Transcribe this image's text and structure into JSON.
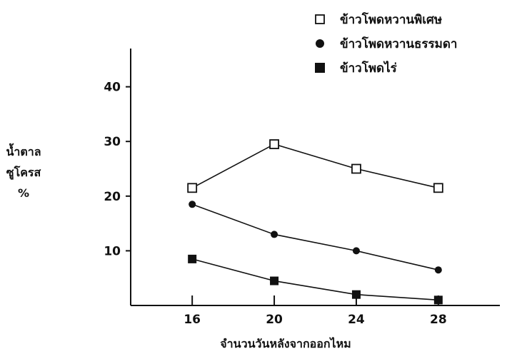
{
  "chart_data": {
    "type": "line",
    "x": [
      16,
      20,
      24,
      28
    ],
    "xticks": [
      "16",
      "20",
      "24",
      "28"
    ],
    "yticks": [
      "10",
      "20",
      "30",
      "40"
    ],
    "ylim": [
      0,
      50
    ],
    "xlim": [
      13,
      31
    ],
    "ylabel_lines": [
      "น้ำตาล",
      "ซูโครส",
      "%"
    ],
    "xlabel": "จำนวนวันหลังจากออกไหม",
    "legend_position": "top-right",
    "series": [
      {
        "name": "ข้าวโพดหวานพิเศษ",
        "marker": "open-square",
        "color": "#111111",
        "values": [
          21.5,
          29.5,
          25,
          21.5
        ]
      },
      {
        "name": "ข้าวโพดหวานธรรมดา",
        "marker": "filled-circle",
        "color": "#111111",
        "values": [
          18.5,
          13,
          10,
          6.5
        ]
      },
      {
        "name": "ข้าวโพดไร่",
        "marker": "filled-square",
        "color": "#111111",
        "values": [
          8.5,
          4.5,
          2,
          1
        ]
      }
    ]
  }
}
